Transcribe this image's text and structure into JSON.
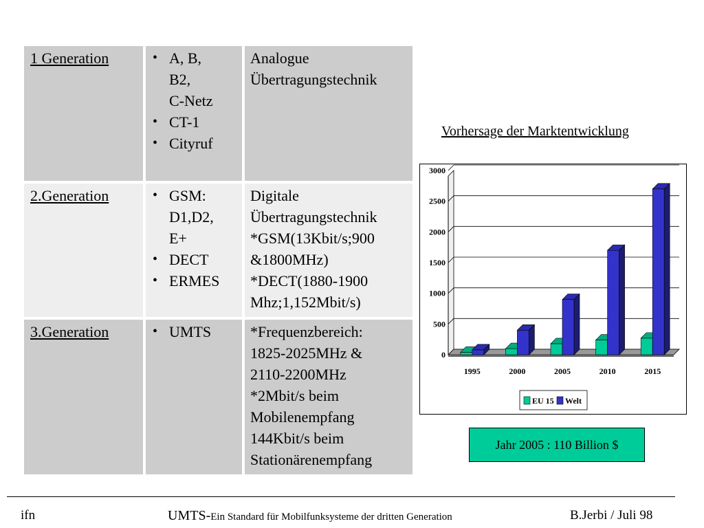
{
  "table": {
    "rows": [
      {
        "label": "1 Generation",
        "systems": [
          "A, B,",
          "B2,",
          "C-Netz",
          "CT-1",
          "Cityruf"
        ],
        "description": [
          "Analogue",
          "Übertragungstechnik"
        ]
      },
      {
        "label": "2.Generation",
        "systems": [
          "GSM:",
          "D1,D2,",
          "E+",
          "DECT",
          "ERMES"
        ],
        "description": [
          "Digitale",
          "Übertragungstechnik",
          "*GSM(13Kbit/s;900",
          "&1800MHz)",
          "*DECT(1880-1900",
          "Mhz;1,152Mbit/s)"
        ]
      },
      {
        "label": "3.Generation",
        "systems": [
          "UMTS"
        ],
        "description": [
          "*Frequenzbereich:",
          "1825-2025MHz &",
          "2110-2200MHz",
          "*2Mbit/s beim",
          "Mobilenempfang",
          "144Kbit/s beim",
          "Stationärenempfang"
        ]
      }
    ]
  },
  "chart_title": "Vorhersage der Marktentwicklung",
  "chart_data": {
    "type": "bar",
    "categories": [
      "1995",
      "2000",
      "2005",
      "2010",
      "2015"
    ],
    "series": [
      {
        "name": "EU 15",
        "values": [
          40,
          100,
          180,
          240,
          270
        ],
        "color": "#00cc99"
      },
      {
        "name": "Welt",
        "values": [
          80,
          400,
          900,
          1700,
          2700
        ],
        "color": "#3333cc"
      }
    ],
    "y_ticks": [
      "0",
      "500",
      "1000",
      "1500",
      "2000",
      "2500",
      "3000"
    ],
    "ylim": [
      0,
      3000
    ],
    "grid": true,
    "legend_position": "bottom",
    "three_d": true
  },
  "callout_text": "Jahr 2005 : 110 Billion $",
  "footer": {
    "left": "ifn",
    "center_main": "UMTS-",
    "center_sub": "Ein Standard für Mobilfunksysteme der dritten Generation",
    "right": "B.Jerbi / Juli 98"
  }
}
